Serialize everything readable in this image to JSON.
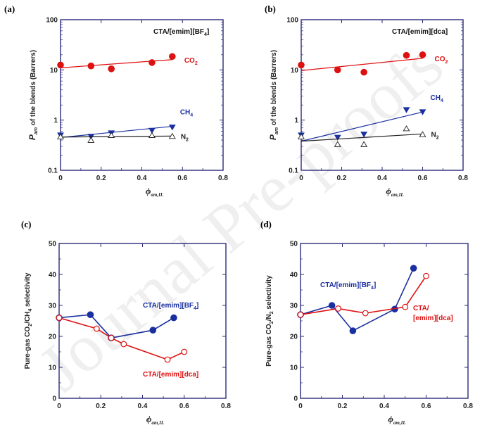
{
  "watermark": "Journal Pre-proofs",
  "chart_data": [
    {
      "id": "a",
      "panel_label": "(a)",
      "type": "scatter",
      "yscale": "log",
      "xlim": [
        0,
        0.8
      ],
      "ylim": [
        0.1,
        100
      ],
      "xticks": [
        "0",
        "0.2",
        "0.4",
        "0.6",
        "0.8"
      ],
      "xtick_values": [
        0,
        0.2,
        0.4,
        0.6,
        0.8
      ],
      "yticks": [
        "0.1",
        "1",
        "10",
        "100"
      ],
      "ytick_values": [
        0.1,
        1,
        10,
        100
      ],
      "ylabel_main": "P",
      "ylabel_sub": "am",
      "ylabel_rest": " of the blends (Barrers)",
      "xlabel_main": "ϕ",
      "xlabel_sub": "am,IL",
      "title": {
        "main": "CTA/[emim][BF",
        "sub": "4",
        "tail": "]"
      },
      "series": [
        {
          "name": "CO2",
          "label_main": "CO",
          "label_sub": "2",
          "color": "#dd1111",
          "marker": "circle-filled",
          "x": [
            0,
            0.15,
            0.25,
            0.45,
            0.55
          ],
          "y": [
            12.5,
            12,
            10.5,
            14,
            18.5
          ],
          "fit": {
            "x": [
              0,
              0.55
            ],
            "y": [
              11,
              16
            ]
          }
        },
        {
          "name": "CH4",
          "label_main": "CH",
          "label_sub": "4",
          "color": "#1a2fa0",
          "marker": "triangle-down-filled",
          "x": [
            0,
            0.15,
            0.25,
            0.45,
            0.55
          ],
          "y": [
            0.5,
            0.47,
            0.55,
            0.62,
            0.72
          ],
          "fit": {
            "x": [
              0,
              0.55
            ],
            "y": [
              0.45,
              0.75
            ]
          }
        },
        {
          "name": "N2",
          "label_main": "N",
          "label_sub": "2",
          "color": "#222222",
          "marker": "triangle-up-open",
          "x": [
            0,
            0.15,
            0.25,
            0.45,
            0.55
          ],
          "y": [
            0.47,
            0.4,
            0.5,
            0.5,
            0.48
          ],
          "fit": {
            "x": [
              0,
              0.55
            ],
            "y": [
              0.46,
              0.48
            ]
          }
        }
      ]
    },
    {
      "id": "b",
      "panel_label": "(b)",
      "type": "scatter",
      "yscale": "log",
      "xlim": [
        0,
        0.8
      ],
      "ylim": [
        0.1,
        100
      ],
      "xticks": [
        "0",
        "0.2",
        "0.4",
        "0.6",
        "0.8"
      ],
      "xtick_values": [
        0,
        0.2,
        0.4,
        0.6,
        0.8
      ],
      "yticks": [
        "0.1",
        "1",
        "10",
        "100"
      ],
      "ytick_values": [
        0.1,
        1,
        10,
        100
      ],
      "ylabel_main": "P",
      "ylabel_sub": "am",
      "ylabel_rest": " of the blends (Barrers)",
      "xlabel_main": "ϕ",
      "xlabel_sub": "am,IL",
      "title": {
        "main": "CTA/[emim][dca]",
        "sub": "",
        "tail": ""
      },
      "series": [
        {
          "name": "CO2",
          "label_main": "CO",
          "label_sub": "2",
          "color": "#dd1111",
          "marker": "circle-filled",
          "x": [
            0,
            0.18,
            0.31,
            0.52,
            0.6
          ],
          "y": [
            12.5,
            10,
            9,
            19.5,
            20
          ],
          "fit": {
            "x": [
              0,
              0.6
            ],
            "y": [
              9.7,
              17
            ]
          }
        },
        {
          "name": "CH4",
          "label_main": "CH",
          "label_sub": "4",
          "color": "#1a2fa0",
          "marker": "triangle-down-filled",
          "x": [
            0,
            0.18,
            0.31,
            0.52,
            0.6
          ],
          "y": [
            0.5,
            0.45,
            0.52,
            1.6,
            1.45
          ],
          "fit": {
            "x": [
              0,
              0.6
            ],
            "y": [
              0.38,
              1.45
            ]
          }
        },
        {
          "name": "N2",
          "label_main": "N",
          "label_sub": "2",
          "color": "#222222",
          "marker": "triangle-up-open",
          "x": [
            0,
            0.18,
            0.31,
            0.52,
            0.6
          ],
          "y": [
            0.47,
            0.33,
            0.33,
            0.68,
            0.52
          ],
          "fit": {
            "x": [
              0,
              0.6
            ],
            "y": [
              0.38,
              0.53
            ]
          }
        }
      ]
    },
    {
      "id": "c",
      "panel_label": "(c)",
      "type": "line",
      "yscale": "linear",
      "xlim": [
        0,
        0.8
      ],
      "ylim": [
        0,
        50
      ],
      "xticks": [
        "0",
        "0.2",
        "0.4",
        "0.6",
        "0.8"
      ],
      "xtick_values": [
        0,
        0.2,
        0.4,
        0.6,
        0.8
      ],
      "yticks": [
        "0",
        "10",
        "20",
        "30",
        "40",
        "50"
      ],
      "ytick_values": [
        0,
        10,
        20,
        30,
        40,
        50
      ],
      "ylabel_main": "Pure-gas CO",
      "ylabel_sub1": "2",
      "ylabel_mid": "/CH",
      "ylabel_sub2": "4",
      "ylabel_rest": " selectivity",
      "xlabel_main": "ϕ",
      "xlabel_sub": "am,IL",
      "series": [
        {
          "name": "CTA/[emim][BF4]",
          "label_main": "CTA/[emim][BF",
          "label_sub": "4",
          "label_tail": "]",
          "color": "#1a2fa0",
          "marker": "circle-filled",
          "x": [
            0,
            0.15,
            0.25,
            0.45,
            0.55
          ],
          "y": [
            26,
            27,
            19.5,
            22,
            26
          ]
        },
        {
          "name": "CTA/[emim][dca]",
          "label_main": "CTA/[emim][dca]",
          "label_sub": "",
          "label_tail": "",
          "color": "#dd1111",
          "marker": "circle-open",
          "x": [
            0,
            0.18,
            0.25,
            0.31,
            0.52,
            0.6
          ],
          "y": [
            26,
            22.5,
            19.5,
            17.5,
            12.5,
            15
          ]
        }
      ]
    },
    {
      "id": "d",
      "panel_label": "(d)",
      "type": "line",
      "yscale": "linear",
      "xlim": [
        0,
        0.8
      ],
      "ylim": [
        0,
        50
      ],
      "xticks": [
        "0",
        "0.2",
        "0.4",
        "0.6",
        "0.8"
      ],
      "xtick_values": [
        0,
        0.2,
        0.4,
        0.6,
        0.8
      ],
      "yticks": [
        "0",
        "10",
        "20",
        "30",
        "40",
        "50"
      ],
      "ytick_values": [
        0,
        10,
        20,
        30,
        40,
        50
      ],
      "ylabel_main": "Pure-gas CO",
      "ylabel_sub1": "2",
      "ylabel_mid": "/N",
      "ylabel_sub2": "2",
      "ylabel_rest": " selectivity",
      "xlabel_main": "ϕ",
      "xlabel_sub": "am,IL",
      "series": [
        {
          "name": "CTA/[emim][BF4]",
          "label_main": "CTA/[emim][BF",
          "label_sub": "4",
          "label_tail": "]",
          "color": "#1a2fa0",
          "marker": "circle-filled",
          "x": [
            0,
            0.15,
            0.25,
            0.45,
            0.54
          ],
          "y": [
            27,
            30,
            21.8,
            28.8,
            42
          ]
        },
        {
          "name": "CTA/[emim][dca]",
          "label_main": "CTA/",
          "label_line2": "[emim][dca]",
          "color": "#dd1111",
          "marker": "circle-open",
          "x": [
            0,
            0.18,
            0.31,
            0.5,
            0.6
          ],
          "y": [
            27,
            29,
            27.5,
            29.5,
            39.5
          ]
        }
      ]
    }
  ]
}
